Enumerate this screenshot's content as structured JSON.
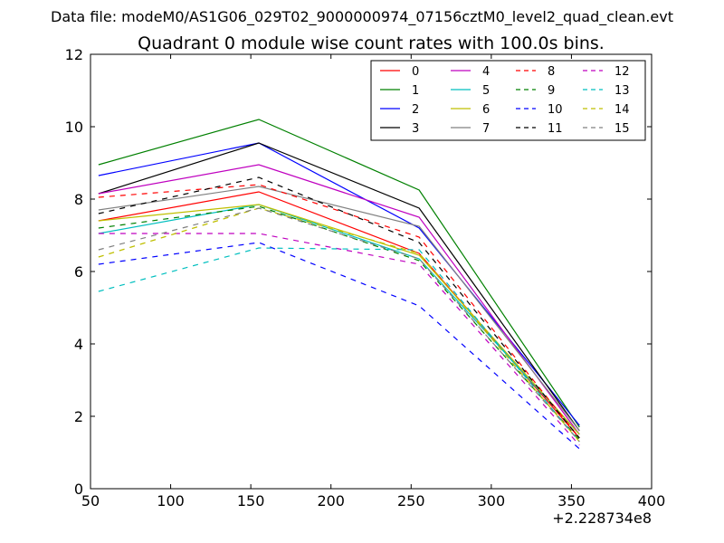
{
  "chart_data": {
    "type": "line",
    "suptitle": "Data file: modeM0/AS1G06_029T02_9000000974_07156cztM0_level2_quad_clean.evt",
    "title": "Quadrant 0 module wise count rates with 100.0s bins.",
    "xlabel": "",
    "ylabel": "",
    "x_offset_label": "+2.228734e8",
    "xlim": [
      50,
      400
    ],
    "ylim": [
      0,
      12
    ],
    "xticks": [
      50,
      100,
      150,
      200,
      250,
      300,
      350,
      400
    ],
    "yticks": [
      0,
      2,
      4,
      6,
      8,
      10,
      12
    ],
    "x": [
      55,
      155,
      255,
      355
    ],
    "grid": false,
    "legend_position": "top-right",
    "legend_columns": 4,
    "series": [
      {
        "name": "0",
        "color": "#ff0000",
        "dash": "solid",
        "values": [
          7.4,
          8.2,
          6.5,
          1.4
        ]
      },
      {
        "name": "1",
        "color": "#008000",
        "dash": "solid",
        "values": [
          8.95,
          10.2,
          8.25,
          1.7
        ]
      },
      {
        "name": "2",
        "color": "#0000ff",
        "dash": "solid",
        "values": [
          8.65,
          9.55,
          7.2,
          1.75
        ]
      },
      {
        "name": "3",
        "color": "#000000",
        "dash": "solid",
        "values": [
          8.15,
          9.55,
          7.75,
          1.6
        ]
      },
      {
        "name": "4",
        "color": "#bf00bf",
        "dash": "solid",
        "values": [
          8.15,
          8.95,
          7.5,
          1.5
        ]
      },
      {
        "name": "5",
        "color": "#00bfbf",
        "dash": "solid",
        "values": [
          7.05,
          7.85,
          6.35,
          1.5
        ]
      },
      {
        "name": "6",
        "color": "#bfbf00",
        "dash": "solid",
        "values": [
          7.4,
          7.85,
          6.45,
          1.5
        ]
      },
      {
        "name": "7",
        "color": "#808080",
        "dash": "solid",
        "values": [
          7.7,
          8.35,
          7.25,
          1.6
        ]
      },
      {
        "name": "8",
        "color": "#ff0000",
        "dash": "dashed",
        "values": [
          8.05,
          8.4,
          6.95,
          1.4
        ]
      },
      {
        "name": "9",
        "color": "#008000",
        "dash": "dashed",
        "values": [
          7.2,
          7.8,
          6.3,
          1.35
        ]
      },
      {
        "name": "10",
        "color": "#0000ff",
        "dash": "dashed",
        "values": [
          6.2,
          6.8,
          5.05,
          1.1
        ]
      },
      {
        "name": "11",
        "color": "#000000",
        "dash": "dashed",
        "values": [
          7.6,
          8.6,
          6.8,
          1.4
        ]
      },
      {
        "name": "12",
        "color": "#bf00bf",
        "dash": "dashed",
        "values": [
          7.05,
          7.05,
          6.2,
          1.2
        ]
      },
      {
        "name": "13",
        "color": "#00bfbf",
        "dash": "dashed",
        "values": [
          5.45,
          6.65,
          6.6,
          1.3
        ]
      },
      {
        "name": "14",
        "color": "#bfbf00",
        "dash": "dashed",
        "values": [
          6.4,
          7.75,
          6.5,
          1.3
        ]
      },
      {
        "name": "15",
        "color": "#808080",
        "dash": "dashed",
        "values": [
          6.6,
          7.75,
          6.35,
          1.3
        ]
      }
    ]
  }
}
